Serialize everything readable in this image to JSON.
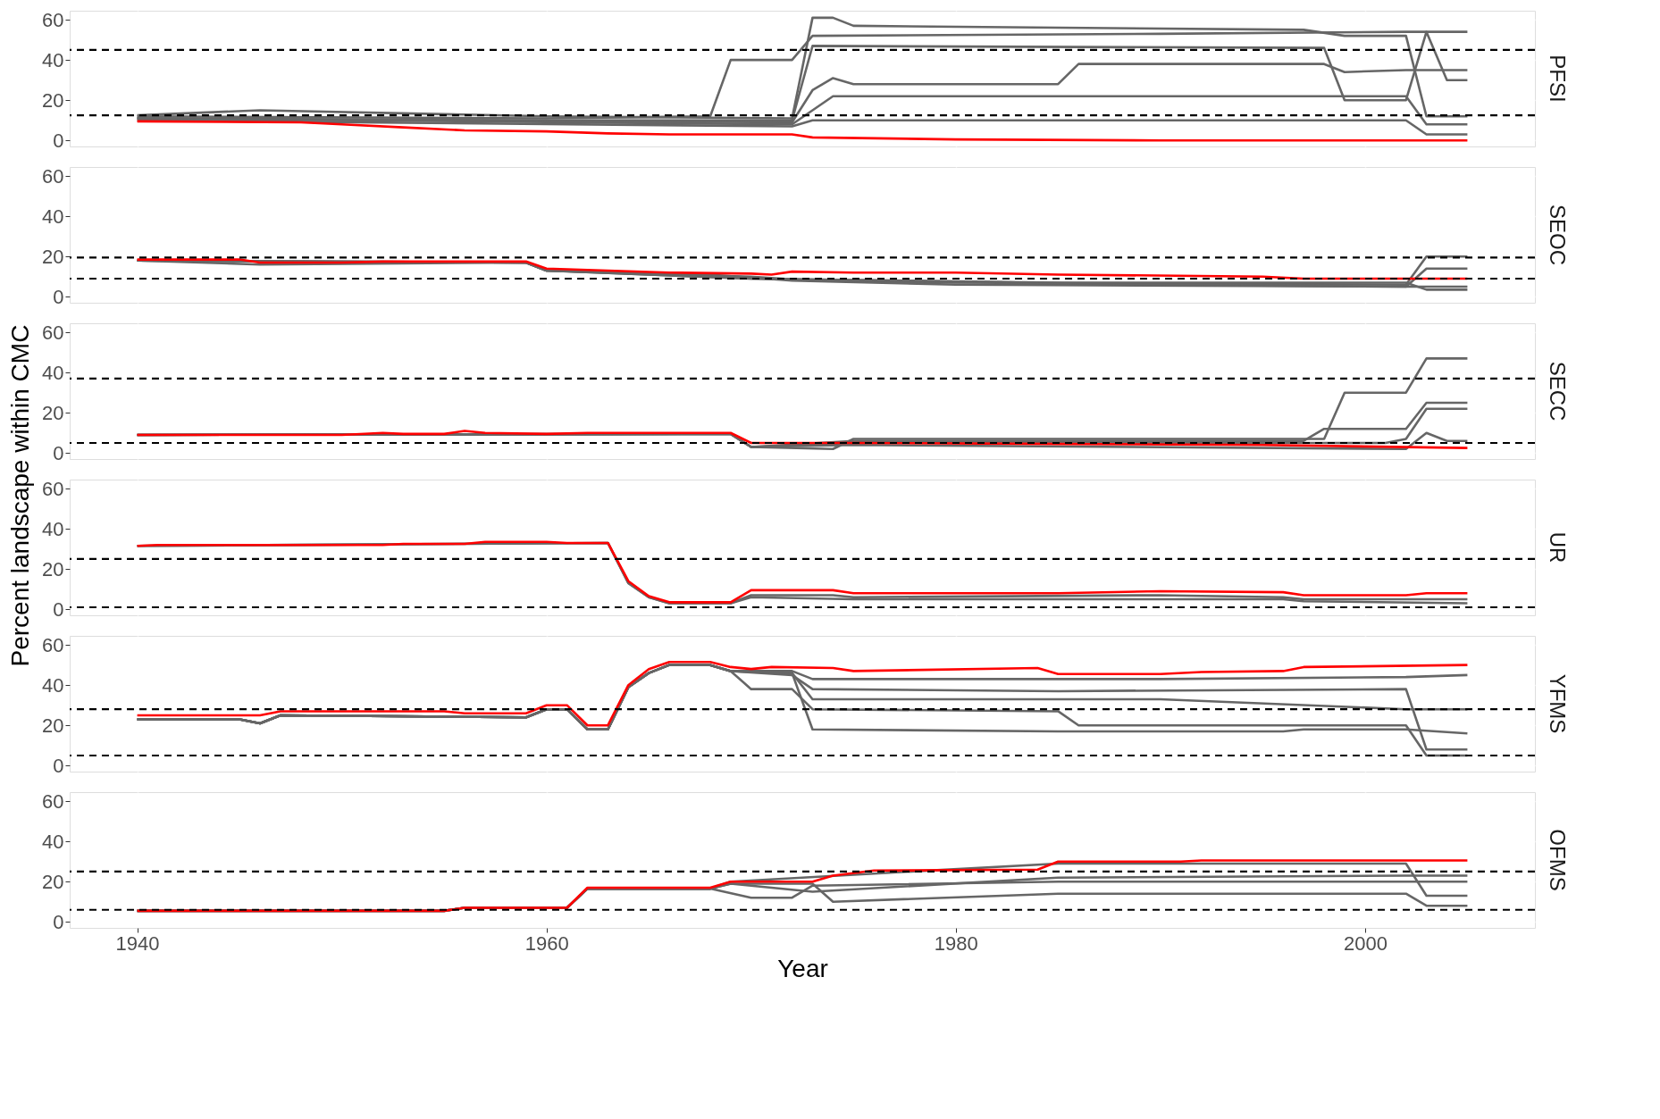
{
  "chart_data": [
    {
      "type": "line",
      "title": "PFSI",
      "xlim": [
        1936.7,
        2008.3
      ],
      "xticks": [
        1940,
        1960,
        1980,
        2000
      ],
      "ylim": [
        -3,
        64.5
      ],
      "yticks": [
        0,
        20,
        40,
        60
      ],
      "grid": true,
      "tick_labels": "y",
      "line_style": "solid",
      "ref_lines": [
        {
          "axis": "y",
          "value": 45,
          "color": "#000000",
          "line_style": "dashed"
        },
        {
          "axis": "y",
          "value": 12.5,
          "color": "#000000",
          "line_style": "dashed"
        }
      ],
      "series": [
        {
          "color": "#666666",
          "x": [
            1940,
            1946,
            1960,
            1972,
            1973,
            1974,
            1975,
            1997,
            1999,
            2002,
            2003,
            2005
          ],
          "values": [
            12.5,
            15,
            12,
            11,
            61,
            61,
            57,
            55,
            52,
            52,
            12,
            12
          ]
        },
        {
          "color": "#666666",
          "x": [
            1940,
            1960,
            1968,
            1969,
            1972,
            1973,
            1990,
            2002,
            2003,
            2005
          ],
          "values": [
            12,
            11,
            12,
            40,
            40,
            52,
            53,
            54,
            54,
            54
          ]
        },
        {
          "color": "#666666",
          "x": [
            1940,
            1960,
            1972,
            1973,
            1998,
            1999,
            2002,
            2003,
            2004,
            2005
          ],
          "values": [
            11,
            10,
            10,
            47,
            46,
            20,
            20,
            54,
            30,
            30
          ]
        },
        {
          "color": "#666666",
          "x": [
            1940,
            1972,
            1973,
            1974,
            1975,
            1985,
            1986,
            1998,
            1999,
            2002,
            2005
          ],
          "values": [
            11,
            9,
            25,
            31,
            28,
            28,
            38,
            38,
            34,
            35,
            35
          ]
        },
        {
          "color": "#666666",
          "x": [
            1940,
            1972,
            1973,
            1974,
            1990,
            2002,
            2003,
            2005
          ],
          "values": [
            11,
            8,
            15,
            22,
            22,
            22,
            8,
            8
          ]
        },
        {
          "color": "#666666",
          "x": [
            1940,
            1972,
            1973,
            1990,
            2002,
            2003,
            2005
          ],
          "values": [
            10,
            7,
            10,
            10,
            10,
            3,
            3
          ]
        },
        {
          "color": "#ff0000",
          "x": [
            1940,
            1948,
            1950,
            1953,
            1956,
            1960,
            1963,
            1966,
            1970,
            1972,
            1973,
            1980,
            1990,
            2005
          ],
          "values": [
            9.5,
            9,
            8,
            6.5,
            5,
            4.5,
            3.5,
            3,
            3,
            3,
            1.5,
            0.5,
            0,
            0
          ]
        }
      ]
    },
    {
      "type": "line",
      "title": "SEOC",
      "xlim": [
        1936.7,
        2008.3
      ],
      "xticks": [
        1940,
        1960,
        1980,
        2000
      ],
      "ylim": [
        -3,
        64.5
      ],
      "yticks": [
        0,
        20,
        40,
        60
      ],
      "grid": true,
      "tick_labels": "y",
      "line_style": "solid",
      "ref_lines": [
        {
          "axis": "y",
          "value": 19.5,
          "color": "#000000",
          "line_style": "dashed"
        },
        {
          "axis": "y",
          "value": 9,
          "color": "#000000",
          "line_style": "dashed"
        }
      ],
      "series": [
        {
          "color": "#666666",
          "x": [
            1940,
            1946,
            1959,
            1960,
            1966,
            1970,
            1973,
            1980,
            2002,
            2003,
            2005
          ],
          "values": [
            18,
            16,
            17,
            13,
            11,
            10,
            8,
            7,
            6,
            20,
            20
          ]
        },
        {
          "color": "#666666",
          "x": [
            1940,
            1959,
            1960,
            1968,
            1972,
            1980,
            2002,
            2003,
            2005
          ],
          "values": [
            18,
            17,
            13,
            11,
            8,
            6,
            5,
            5,
            5
          ]
        },
        {
          "color": "#666666",
          "x": [
            1940,
            1959,
            1960,
            1970,
            1990,
            2002,
            2003,
            2005
          ],
          "values": [
            18,
            17,
            13,
            9,
            6,
            5,
            14,
            14
          ]
        },
        {
          "color": "#666666",
          "x": [
            1940,
            1959,
            1960,
            1970,
            1985,
            2002,
            2003,
            2005
          ],
          "values": [
            18,
            17,
            13,
            9,
            7,
            7,
            3.5,
            3.5
          ]
        },
        {
          "color": "#ff0000",
          "x": [
            1940,
            1945,
            1946,
            1950,
            1952,
            1959,
            1960,
            1963,
            1966,
            1970,
            1971,
            1972,
            1975,
            1980,
            1985,
            1995,
            1997,
            2005
          ],
          "values": [
            18.5,
            18.5,
            17,
            17,
            17.5,
            17.5,
            14,
            13,
            12,
            11.5,
            11,
            12.5,
            12,
            12,
            11,
            10,
            9,
            9
          ]
        }
      ]
    },
    {
      "type": "line",
      "title": "SECC",
      "ylabel": "Percent landscape within CMC",
      "xlim": [
        1936.7,
        2008.3
      ],
      "xticks": [
        1940,
        1960,
        1980,
        2000
      ],
      "ylim": [
        -3,
        64.5
      ],
      "yticks": [
        0,
        20,
        40,
        60
      ],
      "grid": true,
      "tick_labels": "y",
      "line_style": "solid",
      "ref_lines": [
        {
          "axis": "y",
          "value": 37,
          "color": "#000000",
          "line_style": "dashed"
        },
        {
          "axis": "y",
          "value": 5,
          "color": "#000000",
          "line_style": "dashed"
        }
      ],
      "series": [
        {
          "color": "#666666",
          "x": [
            1940,
            1969,
            1970,
            1974,
            1975,
            1998,
            1999,
            2002,
            2003,
            2005
          ],
          "values": [
            9,
            9.5,
            3,
            2,
            7,
            7,
            30,
            30,
            47,
            47
          ]
        },
        {
          "color": "#666666",
          "x": [
            1940,
            1969,
            1970,
            1975,
            1997,
            1998,
            2002,
            2003,
            2005
          ],
          "values": [
            9,
            9.5,
            3,
            6,
            6,
            12,
            12,
            25,
            25
          ]
        },
        {
          "color": "#666666",
          "x": [
            1940,
            1969,
            1970,
            1975,
            2001,
            2002,
            2003,
            2005
          ],
          "values": [
            9,
            9.5,
            3,
            5,
            5,
            7,
            22,
            22
          ]
        },
        {
          "color": "#666666",
          "x": [
            1940,
            1969,
            1970,
            1975,
            2002,
            2003,
            2004,
            2005
          ],
          "values": [
            9,
            9.5,
            3,
            4,
            2,
            10,
            6,
            6
          ]
        },
        {
          "color": "#ff0000",
          "x": [
            1940,
            1948,
            1950,
            1952,
            1953,
            1955,
            1956,
            1957,
            1960,
            1962,
            1969,
            1970,
            1975,
            1985,
            1995,
            2005
          ],
          "values": [
            9,
            9,
            9,
            10,
            9.5,
            9.5,
            11,
            10,
            9.5,
            10,
            10,
            5,
            5,
            4.5,
            4,
            2.5
          ]
        }
      ]
    },
    {
      "type": "line",
      "title": "UR",
      "xlim": [
        1936.7,
        2008.3
      ],
      "xticks": [
        1940,
        1960,
        1980,
        2000
      ],
      "ylim": [
        -3,
        64.5
      ],
      "yticks": [
        0,
        20,
        40,
        60
      ],
      "grid": true,
      "tick_labels": "y",
      "line_style": "solid",
      "ref_lines": [
        {
          "axis": "y",
          "value": 25,
          "color": "#000000",
          "line_style": "dashed"
        },
        {
          "axis": "y",
          "value": 1,
          "color": "#000000",
          "line_style": "dashed"
        }
      ],
      "series": [
        {
          "color": "#666666",
          "x": [
            1940,
            1963,
            1964,
            1965,
            1966,
            1969,
            1970,
            1974,
            1975,
            1990,
            1996,
            1997,
            2005
          ],
          "values": [
            31.5,
            33,
            13,
            6,
            3,
            3,
            7,
            7,
            6,
            7,
            6,
            5,
            5
          ]
        },
        {
          "color": "#666666",
          "x": [
            1940,
            1963,
            1964,
            1965,
            1966,
            1969,
            1970,
            1975,
            1996,
            1997,
            2005
          ],
          "values": [
            31.5,
            33,
            13,
            6,
            3,
            3,
            6,
            5,
            5,
            4,
            3
          ]
        },
        {
          "color": "#ff0000",
          "x": [
            1940,
            1941,
            1952,
            1953,
            1956,
            1957,
            1960,
            1961,
            1963,
            1964,
            1965,
            1966,
            1969,
            1970,
            1974,
            1975,
            1985,
            1990,
            1996,
            1997,
            2002,
            2003,
            2005
          ],
          "values": [
            31.5,
            32,
            32,
            32.5,
            32.5,
            33.5,
            33.5,
            33,
            33,
            14,
            6.5,
            3.5,
            3.5,
            9.5,
            9.5,
            8,
            8,
            9,
            8.5,
            7,
            7,
            8,
            8
          ]
        }
      ]
    },
    {
      "type": "line",
      "title": "YFMS",
      "xlim": [
        1936.7,
        2008.3
      ],
      "xticks": [
        1940,
        1960,
        1980,
        2000
      ],
      "ylim": [
        -3,
        64.5
      ],
      "yticks": [
        0,
        20,
        40,
        60
      ],
      "grid": true,
      "tick_labels": "y",
      "line_style": "solid",
      "ref_lines": [
        {
          "axis": "y",
          "value": 28,
          "color": "#000000",
          "line_style": "dashed"
        },
        {
          "axis": "y",
          "value": 5,
          "color": "#000000",
          "line_style": "dashed"
        }
      ],
      "series": [
        {
          "color": "#666666",
          "x": [
            1940,
            1945,
            1946,
            1947,
            1959,
            1960,
            1961,
            1962,
            1963,
            1964,
            1965,
            1966,
            1968,
            1969,
            1972,
            1973,
            1985,
            1996,
            1997,
            2002,
            2005
          ],
          "values": [
            23,
            23,
            21,
            25,
            24,
            28,
            28,
            18,
            18,
            39,
            46,
            50,
            50,
            47,
            46,
            18,
            17,
            17,
            18,
            18,
            16
          ]
        },
        {
          "color": "#666666",
          "x": [
            1940,
            1945,
            1946,
            1947,
            1959,
            1960,
            1961,
            1962,
            1963,
            1964,
            1965,
            1966,
            1968,
            1969,
            1972,
            1973,
            1985,
            2002,
            2003,
            2005
          ],
          "values": [
            23,
            23,
            21,
            25,
            24,
            28,
            28,
            18,
            18,
            39,
            46,
            50,
            50,
            47,
            45,
            38,
            37,
            38,
            8,
            8
          ]
        },
        {
          "color": "#666666",
          "x": [
            1940,
            1945,
            1946,
            1947,
            1959,
            1960,
            1961,
            1962,
            1963,
            1964,
            1965,
            1966,
            1968,
            1969,
            1972,
            1973,
            1990,
            2002,
            2005
          ],
          "values": [
            23,
            23,
            21,
            25,
            24,
            28,
            28,
            18,
            18,
            39,
            46,
            50,
            50,
            47,
            47,
            43,
            43,
            44,
            45
          ]
        },
        {
          "color": "#666666",
          "x": [
            1940,
            1945,
            1946,
            1947,
            1959,
            1960,
            1961,
            1962,
            1963,
            1964,
            1965,
            1966,
            1968,
            1969,
            1970,
            1972,
            1973,
            1985,
            1986,
            2002,
            2003,
            2005
          ],
          "values": [
            23,
            23,
            21,
            25,
            24,
            28,
            28,
            18,
            18,
            39,
            46,
            50,
            50,
            47,
            38,
            38,
            28,
            27,
            20,
            20,
            5,
            5
          ]
        },
        {
          "color": "#666666",
          "x": [
            1940,
            1945,
            1946,
            1947,
            1959,
            1960,
            1961,
            1962,
            1963,
            1964,
            1965,
            1966,
            1968,
            1969,
            1972,
            1973,
            1990,
            2002,
            2005
          ],
          "values": [
            23,
            23,
            21,
            25,
            24,
            28,
            28,
            18,
            18,
            39,
            46,
            50,
            50,
            47,
            46,
            33,
            33,
            28,
            28
          ]
        },
        {
          "color": "#ff0000",
          "x": [
            1940,
            1946,
            1947,
            1955,
            1956,
            1959,
            1960,
            1961,
            1962,
            1963,
            1964,
            1965,
            1966,
            1968,
            1969,
            1970,
            1971,
            1974,
            1975,
            1984,
            1985,
            1990,
            1992,
            1996,
            1997,
            2005
          ],
          "values": [
            25,
            25,
            27,
            27,
            26,
            26,
            30,
            30,
            20,
            20,
            40,
            48,
            51.5,
            51.5,
            49,
            48,
            49,
            48.5,
            47,
            48.5,
            45.5,
            45.5,
            46.5,
            47,
            49,
            50
          ]
        }
      ]
    },
    {
      "type": "line",
      "title": "OFMS",
      "xlabel": "Year",
      "xlim": [
        1936.7,
        2008.3
      ],
      "xticks": [
        1940,
        1960,
        1980,
        2000
      ],
      "ylim": [
        -3,
        64.5
      ],
      "yticks": [
        0,
        20,
        40,
        60
      ],
      "grid": true,
      "line_style": "solid",
      "ref_lines": [
        {
          "axis": "y",
          "value": 25,
          "color": "#000000",
          "line_style": "dashed"
        },
        {
          "axis": "y",
          "value": 6,
          "color": "#000000",
          "line_style": "dashed"
        }
      ],
      "series": [
        {
          "color": "#666666",
          "x": [
            1940,
            1955,
            1956,
            1961,
            1962,
            1968,
            1970,
            1972,
            1973,
            1985,
            2005
          ],
          "values": [
            5.5,
            5.5,
            7,
            7,
            16.5,
            16.5,
            12,
            12,
            18,
            20,
            20
          ]
        },
        {
          "color": "#666666",
          "x": [
            1940,
            1955,
            1956,
            1961,
            1962,
            1968,
            1969,
            1973,
            1974,
            1985,
            2002,
            2003,
            2005
          ],
          "values": [
            5.5,
            5.5,
            7,
            7,
            16.5,
            16.5,
            19,
            19,
            10,
            14,
            14,
            8,
            8
          ]
        },
        {
          "color": "#666666",
          "x": [
            1940,
            1955,
            1956,
            1961,
            1962,
            1968,
            1969,
            1976,
            1985,
            2002,
            2003,
            2005
          ],
          "values": [
            5.5,
            5.5,
            7,
            7,
            16.5,
            16.5,
            20,
            24,
            29,
            29,
            13,
            13
          ]
        },
        {
          "color": "#666666",
          "x": [
            1940,
            1955,
            1956,
            1961,
            1962,
            1968,
            1969,
            1973,
            1985,
            2002,
            2005
          ],
          "values": [
            5.5,
            5.5,
            7,
            7,
            16.5,
            16.5,
            19,
            15,
            22,
            23,
            23
          ]
        },
        {
          "color": "#ff0000",
          "x": [
            1940,
            1955,
            1956,
            1961,
            1962,
            1968,
            1969,
            1973,
            1974,
            1976,
            1984,
            1985,
            1991,
            1992,
            2005
          ],
          "values": [
            5.5,
            5.5,
            7,
            7,
            17,
            17,
            20,
            20,
            23,
            25.5,
            26,
            30,
            30,
            30.5,
            30.5
          ]
        }
      ]
    }
  ]
}
